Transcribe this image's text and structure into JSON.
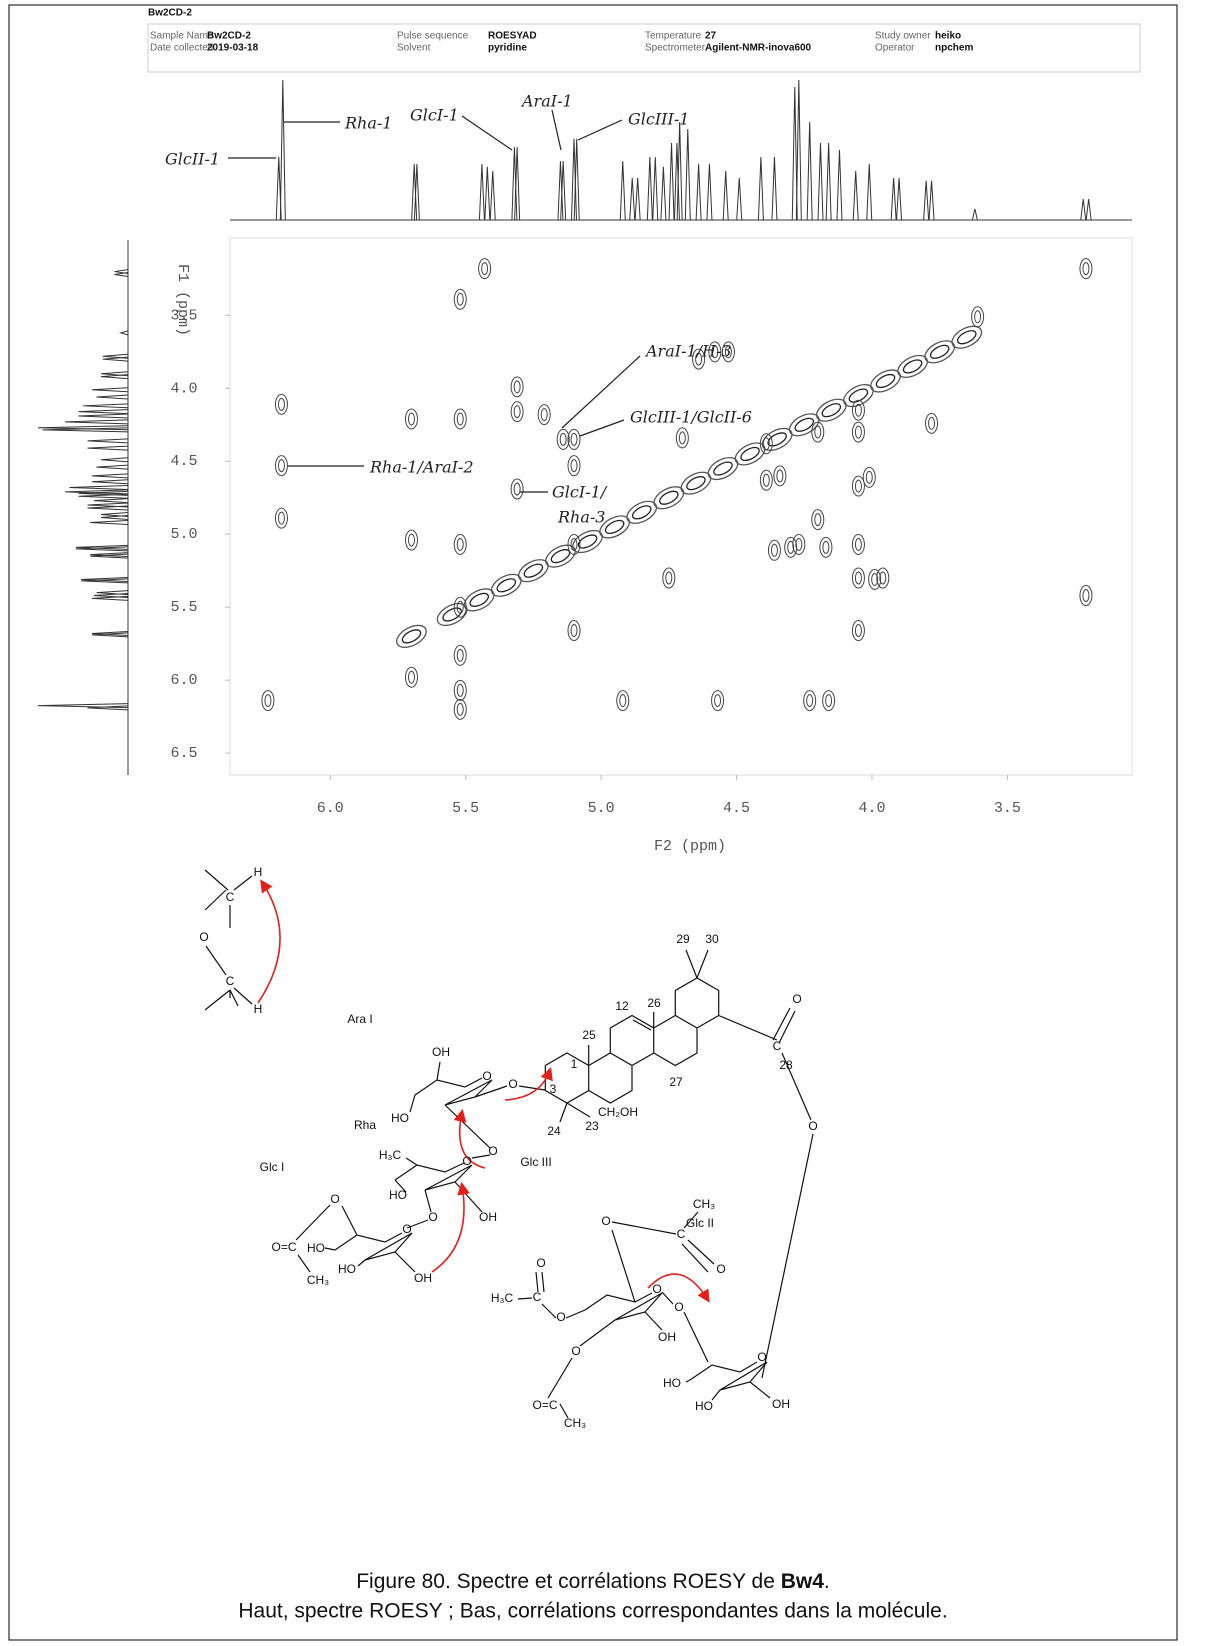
{
  "header": {
    "title": "Bw2CD-2",
    "fields": [
      {
        "label": "Sample Name",
        "value": "Bw2CD-2"
      },
      {
        "label": "Date collected",
        "value": "2019-03-18"
      },
      {
        "label": "Pulse sequence",
        "value": "ROESYAD"
      },
      {
        "label": "Solvent",
        "value": "pyridine"
      },
      {
        "label": "Temperature",
        "value": "27"
      },
      {
        "label": "Spectrometer",
        "value": "Agilent-NMR-inova600"
      },
      {
        "label": "Study owner",
        "value": "heiko"
      },
      {
        "label": "Operator",
        "value": "npchem"
      }
    ]
  },
  "chart_data": {
    "type": "contour",
    "xlabel": "F2 (ppm)",
    "ylabel": "F1 (ppm)",
    "xlim": [
      6.37,
      3.04
    ],
    "ylim": [
      2.97,
      6.65
    ],
    "xticks": [
      {
        "value": 6,
        "label": "6.0"
      },
      5.5,
      {
        "value": 5,
        "label": "5.0"
      },
      4.5,
      {
        "value": 4,
        "label": "4.0"
      },
      3.5
    ],
    "yticks": [
      3.5,
      {
        "value": 4,
        "label": "4.0"
      },
      4.5,
      {
        "value": 5,
        "label": "5.0"
      },
      5.5,
      {
        "value": 6,
        "label": "6.0"
      },
      6.5
    ],
    "projection": {
      "shifts": [
        6.19,
        6.175,
        5.69,
        5.68,
        5.44,
        5.42,
        5.4,
        5.32,
        5.31,
        5.15,
        5.14,
        5.1,
        5.09,
        4.92,
        4.885,
        4.865,
        4.82,
        4.8,
        4.77,
        4.74,
        4.72,
        4.71,
        4.68,
        4.64,
        4.6,
        4.54,
        4.49,
        4.41,
        4.36,
        4.285,
        4.27,
        4.23,
        4.19,
        4.16,
        4.12,
        4.06,
        4.01,
        3.92,
        3.9,
        3.8,
        3.78,
        3.62,
        3.22,
        3.2
      ],
      "heights": [
        45,
        100,
        40,
        40,
        40,
        38,
        35,
        52,
        52,
        42,
        42,
        58,
        58,
        42,
        30,
        30,
        45,
        45,
        38,
        55,
        55,
        70,
        65,
        40,
        40,
        35,
        30,
        45,
        45,
        95,
        100,
        70,
        55,
        55,
        50,
        35,
        40,
        30,
        30,
        28,
        28,
        8,
        15,
        15
      ]
    },
    "peaks": {
      "x": [
        5.43,
        3.21,
        6.18,
        6.18,
        6.18,
        6.23,
        5.7,
        5.7,
        5.7,
        5.52,
        5.52,
        5.52,
        5.52,
        5.52,
        5.52,
        5.52,
        5.31,
        5.31,
        5.31,
        5.21,
        5.14,
        5.1,
        5.1,
        4.92,
        4.57,
        4.75,
        4.7,
        4.64,
        4.58,
        4.53,
        4.39,
        4.39,
        4.34,
        4.2,
        4.2,
        4.05,
        4.05,
        4.05,
        4.05,
        4.05,
        4.05,
        4.01,
        4.36,
        4.3,
        4.27,
        4.17,
        4.23,
        4.16,
        3.99,
        3.96,
        3.78,
        3.21,
        3.61,
        5.1,
        5.1
      ],
      "y": [
        3.18,
        3.18,
        4.11,
        4.53,
        4.89,
        6.14,
        5.98,
        4.21,
        5.04,
        3.39,
        4.21,
        5.07,
        5.5,
        5.83,
        6.07,
        6.2,
        3.99,
        4.16,
        4.69,
        4.18,
        4.35,
        4.35,
        4.53,
        6.14,
        6.14,
        5.3,
        4.34,
        3.8,
        3.75,
        3.75,
        4.38,
        4.63,
        4.6,
        4.3,
        4.9,
        4.15,
        4.3,
        4.67,
        5.07,
        5.3,
        5.66,
        4.61,
        5.11,
        5.09,
        5.07,
        5.09,
        6.14,
        6.14,
        5.31,
        5.3,
        4.24,
        5.42,
        3.51,
        5.07,
        5.66
      ]
    },
    "diagonal": [
      5.7,
      5.55,
      5.45,
      5.35,
      5.25,
      5.15,
      5.05,
      4.95,
      4.85,
      4.75,
      4.65,
      4.55,
      4.45,
      4.35,
      4.25,
      4.15,
      4.05,
      3.95,
      3.85,
      3.75,
      3.65
    ],
    "annotations": [
      "GlcII-1",
      "Rha-1",
      "GlcI-1",
      "AraI-1",
      "GlcIII-1",
      "AraI-1/H-3",
      "GlcIII-1/GlcII-6",
      "Rha-1/AraI-2",
      "GlcI-1/",
      "Rha-3"
    ]
  },
  "molecule": {
    "labels": [
      "H",
      "C",
      "O",
      "C",
      "H",
      "29",
      "30",
      "12",
      "25",
      "26",
      "1",
      "3",
      "27",
      "O",
      "24",
      "23",
      "CH₂OH",
      "28",
      "O",
      "C",
      "O",
      "Ara I",
      "Rha",
      "Glc I",
      "Glc III",
      "Glc II",
      "OH",
      "HO",
      "O",
      "O",
      "H₃C",
      "HO",
      "OH",
      "O",
      "O",
      "O",
      "O=C",
      "CH₃",
      "HO",
      "HO",
      "OH",
      "O",
      "CH₃",
      "O",
      "C",
      "O",
      "O",
      "H₃C",
      "C",
      "O",
      "O=C",
      "CH₃",
      "O",
      "OH",
      "O",
      "HO",
      "HO",
      "OH",
      "O",
      "O"
    ]
  },
  "caption": {
    "prefix": "Figure 80. Spectre et corrélations ROESY de ",
    "bold": "Bw4",
    "suffix": ".",
    "line2": "Haut, spectre ROESY ; Bas, corrélations correspondantes dans la molécule."
  }
}
